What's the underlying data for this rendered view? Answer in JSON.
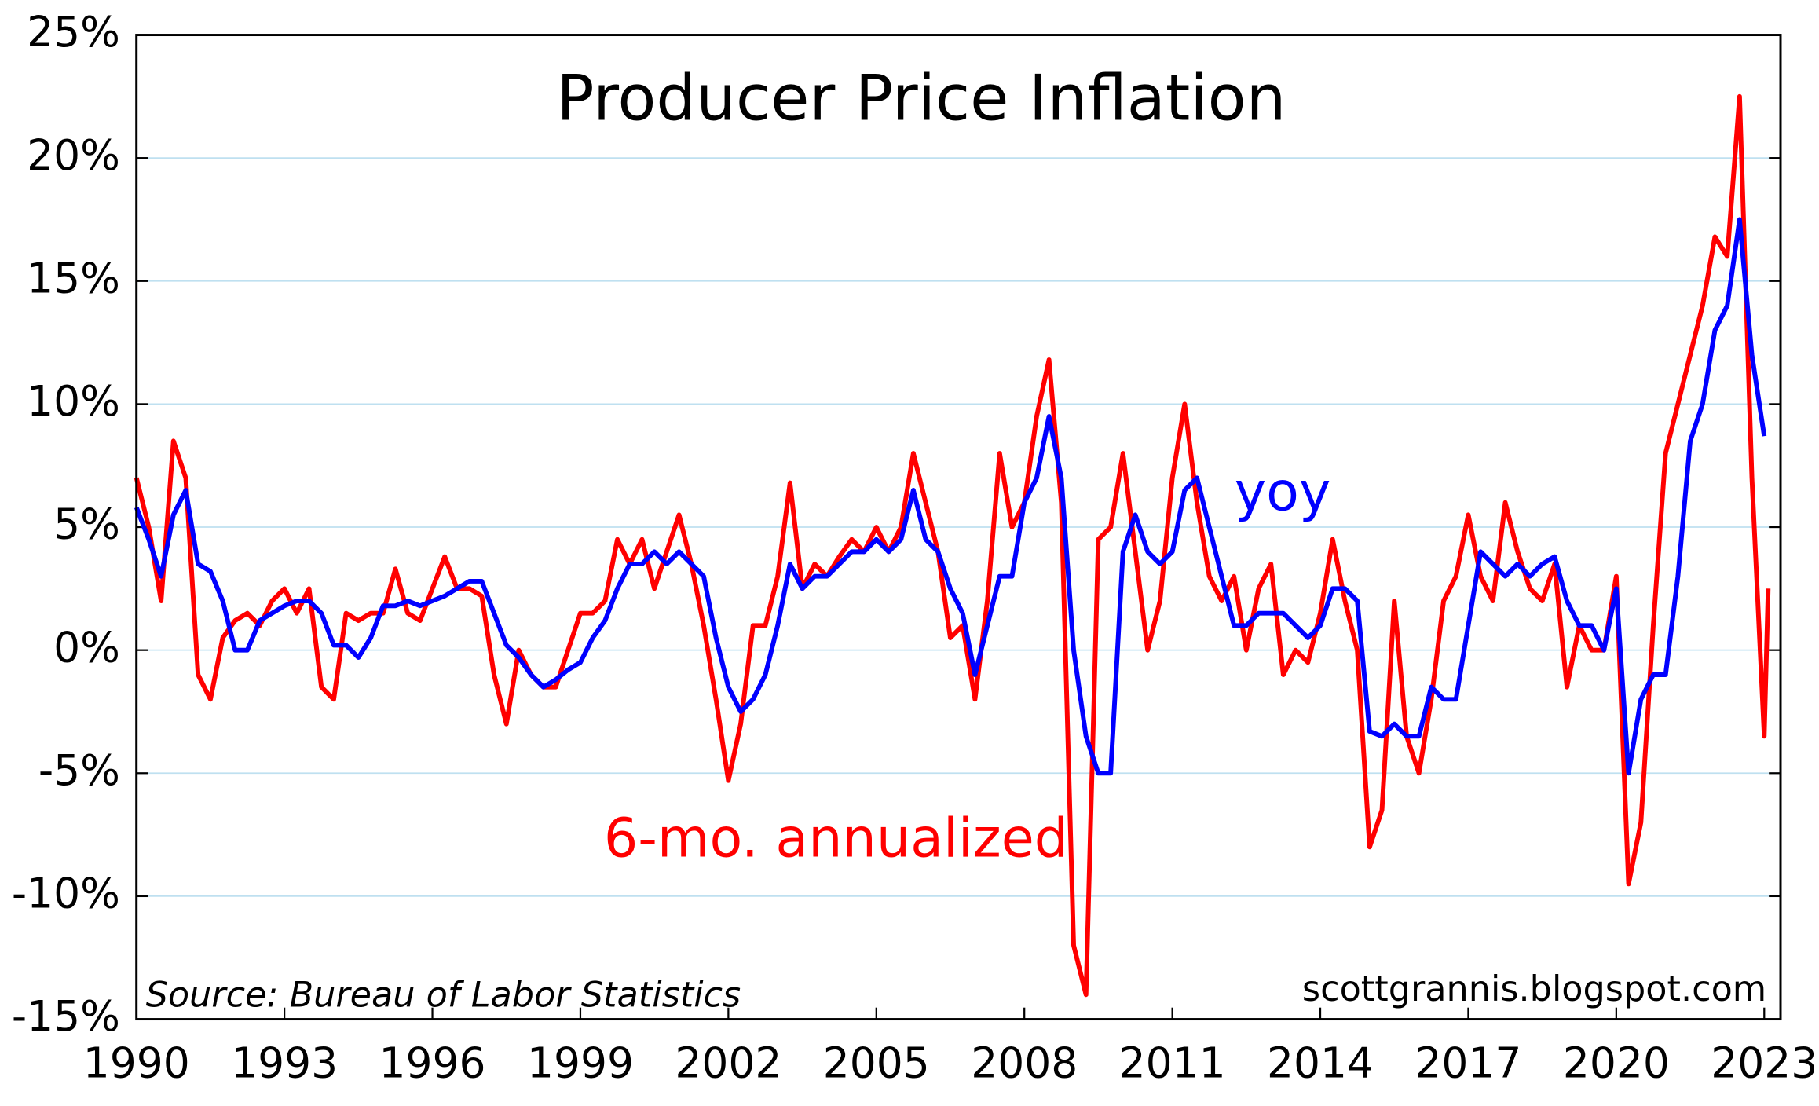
{
  "chart_data": {
    "type": "line",
    "title": "Producer Price Inflation",
    "annotations": {
      "source": "Source: Bureau of Labor Statistics",
      "site": "scottgrannis.blogspot.com"
    },
    "x": [
      1990,
      1990.25,
      1990.5,
      1990.75,
      1991,
      1991.25,
      1991.5,
      1991.75,
      1992,
      1992.25,
      1992.5,
      1992.75,
      1993,
      1993.25,
      1993.5,
      1993.75,
      1994,
      1994.25,
      1994.5,
      1994.75,
      1995,
      1995.25,
      1995.5,
      1995.75,
      1996,
      1996.25,
      1996.5,
      1996.75,
      1997,
      1997.25,
      1997.5,
      1997.75,
      1998,
      1998.25,
      1998.5,
      1998.75,
      1999,
      1999.25,
      1999.5,
      1999.75,
      2000,
      2000.25,
      2000.5,
      2000.75,
      2001,
      2001.25,
      2001.5,
      2001.75,
      2002,
      2002.25,
      2002.5,
      2002.75,
      2003,
      2003.25,
      2003.5,
      2003.75,
      2004,
      2004.25,
      2004.5,
      2004.75,
      2005,
      2005.25,
      2005.5,
      2005.75,
      2006,
      2006.25,
      2006.5,
      2006.75,
      2007,
      2007.25,
      2007.5,
      2007.75,
      2008,
      2008.25,
      2008.5,
      2008.75,
      2009,
      2009.25,
      2009.5,
      2009.75,
      2010,
      2010.25,
      2010.5,
      2010.75,
      2011,
      2011.25,
      2011.5,
      2011.75,
      2012,
      2012.25,
      2012.5,
      2012.75,
      2013,
      2013.25,
      2013.5,
      2013.75,
      2014,
      2014.25,
      2014.5,
      2014.75,
      2015,
      2015.25,
      2015.5,
      2015.75,
      2016,
      2016.25,
      2016.5,
      2016.75,
      2017,
      2017.25,
      2017.5,
      2017.75,
      2018,
      2018.25,
      2018.5,
      2018.75,
      2019,
      2019.25,
      2019.5,
      2019.75,
      2020,
      2020.25,
      2020.5,
      2020.75,
      2021,
      2021.25,
      2021.5,
      2021.75,
      2022,
      2022.25,
      2022.5,
      2022.75,
      2023,
      2023.08
    ],
    "series": [
      {
        "name": "6-mo. annualized",
        "color": "#ff0000",
        "values": [
          7,
          5,
          2,
          8.5,
          7,
          -1,
          -2,
          0.5,
          1.2,
          1.5,
          1,
          2,
          2.5,
          1.5,
          2.5,
          -1.5,
          -2,
          1.5,
          1.2,
          1.5,
          1.5,
          3.3,
          1.5,
          1.2,
          2.5,
          3.8,
          2.5,
          2.5,
          2.2,
          -1,
          -3,
          0,
          -1,
          -1.5,
          -1.5,
          0,
          1.5,
          1.5,
          2,
          4.5,
          3.5,
          4.5,
          2.5,
          4,
          5.5,
          3.5,
          1,
          -2,
          -5.3,
          -3,
          1,
          1,
          3,
          6.8,
          2.5,
          3.5,
          3,
          3.8,
          4.5,
          4,
          5,
          4,
          5,
          8,
          6,
          4,
          0.5,
          1,
          -2,
          2,
          8,
          5,
          6,
          9.5,
          11.8,
          6,
          -12,
          -14,
          4.5,
          5,
          8,
          4,
          0,
          2,
          7,
          10,
          6,
          3,
          2,
          3,
          0,
          2.5,
          3.5,
          -1,
          0,
          -0.5,
          1.5,
          4.5,
          2,
          0,
          -8,
          -6.5,
          2,
          -3.5,
          -5,
          -2,
          2,
          3,
          5.5,
          3,
          2,
          6,
          4,
          2.5,
          2,
          3.5,
          -1.5,
          1,
          0,
          0,
          3,
          -9.5,
          -7,
          1,
          8,
          10,
          12,
          14,
          16.8,
          16,
          22.5,
          7,
          -3.5,
          2.5
        ]
      },
      {
        "name": "yoy",
        "color": "#0000ff",
        "values": [
          5.8,
          4.5,
          3,
          5.5,
          6.5,
          3.5,
          3.2,
          2,
          0,
          0,
          1.2,
          1.5,
          1.8,
          2,
          2,
          1.5,
          0.2,
          0.2,
          -0.3,
          0.5,
          1.8,
          1.8,
          2,
          1.8,
          2,
          2.2,
          2.5,
          2.8,
          2.8,
          1.5,
          0.2,
          -0.3,
          -1,
          -1.5,
          -1.2,
          -0.8,
          -0.5,
          0.5,
          1.2,
          2.5,
          3.5,
          3.5,
          4,
          3.5,
          4,
          3.5,
          3,
          0.5,
          -1.5,
          -2.5,
          -2,
          -1,
          1,
          3.5,
          2.5,
          3,
          3,
          3.5,
          4,
          4,
          4.5,
          4,
          4.5,
          6.5,
          4.5,
          4,
          2.5,
          1.5,
          -1,
          1,
          3,
          3,
          6,
          7,
          9.5,
          7,
          0,
          -3.5,
          -5,
          -5,
          4,
          5.5,
          4,
          3.5,
          4,
          6.5,
          7,
          5,
          3,
          1,
          1,
          1.5,
          1.5,
          1.5,
          1,
          0.5,
          1,
          2.5,
          2.5,
          2,
          -3.3,
          -3.5,
          -3,
          -3.5,
          -3.5,
          -1.5,
          -2,
          -2,
          1,
          4,
          3.5,
          3,
          3.5,
          3,
          3.5,
          3.8,
          2,
          1,
          1,
          0,
          2.5,
          -5,
          -2,
          -1,
          -1,
          3,
          8.5,
          10,
          13,
          14,
          17.5,
          12,
          8.7,
          null
        ]
      }
    ],
    "xlim": [
      1990,
      2023.33
    ],
    "ylim": [
      -15,
      25
    ],
    "xticks": [
      1990,
      1993,
      1996,
      1999,
      2002,
      2005,
      2008,
      2011,
      2014,
      2017,
      2020,
      2023
    ],
    "yticks": [
      {
        "value": -15,
        "label": "-15%"
      },
      {
        "value": -10,
        "label": "-10%"
      },
      {
        "value": -5,
        "label": "-5%"
      },
      {
        "value": 0,
        "label": "0%"
      },
      {
        "value": 5,
        "label": "5%"
      },
      {
        "value": 10,
        "label": "10%"
      },
      {
        "value": 15,
        "label": "15%"
      },
      {
        "value": 20,
        "label": "20%"
      },
      {
        "value": 25,
        "label": "25%"
      }
    ],
    "grid": true
  }
}
